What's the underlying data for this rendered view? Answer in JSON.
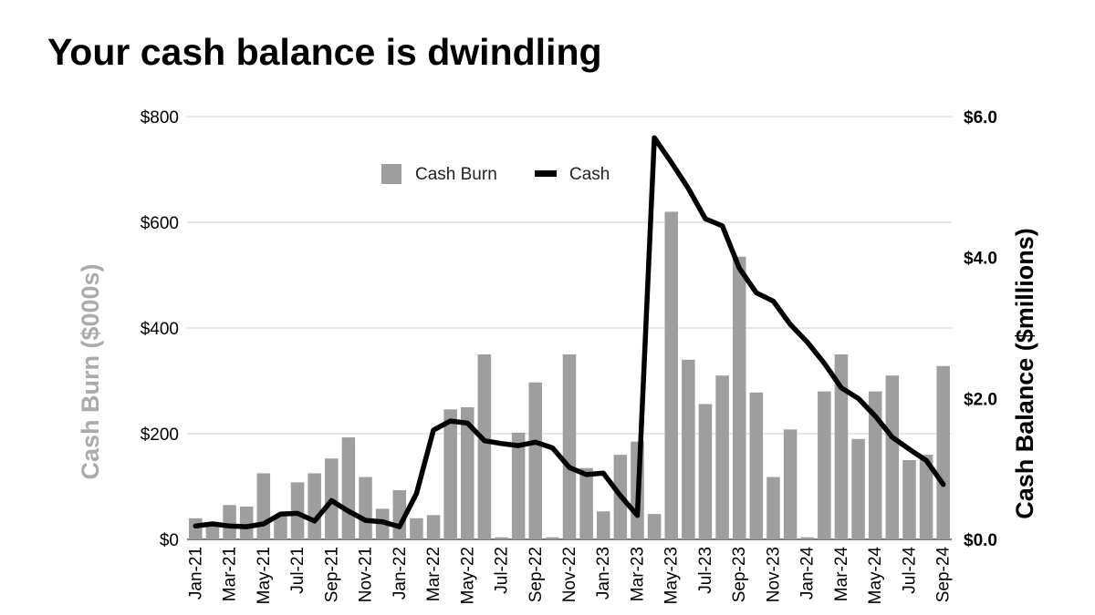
{
  "title": "Your cash balance is dwindling",
  "colors": {
    "bars": "#9e9e9e",
    "line": "#000000",
    "grid": "#d0d0d0",
    "left_axis_title": "#ababab"
  },
  "chart_data": {
    "type": "bar",
    "title": "Your cash balance is dwindling",
    "categories": [
      "Jan-21",
      "Feb-21",
      "Mar-21",
      "Apr-21",
      "May-21",
      "Jun-21",
      "Jul-21",
      "Aug-21",
      "Sep-21",
      "Oct-21",
      "Nov-21",
      "Dec-21",
      "Jan-22",
      "Feb-22",
      "Mar-22",
      "Apr-22",
      "May-22",
      "Jun-22",
      "Jul-22",
      "Aug-22",
      "Sep-22",
      "Oct-22",
      "Nov-22",
      "Dec-22",
      "Jan-23",
      "Feb-23",
      "Mar-23",
      "Apr-23",
      "May-23",
      "Jun-23",
      "Jul-23",
      "Aug-23",
      "Sep-23",
      "Oct-23",
      "Nov-23",
      "Dec-23",
      "Jan-24",
      "Feb-24",
      "Mar-24",
      "Apr-24",
      "May-24",
      "Jun-24",
      "Jul-24",
      "Aug-24",
      "Sep-24"
    ],
    "x_tick_labels": [
      "Jan-21",
      "Mar-21",
      "May-21",
      "Jul-21",
      "Sep-21",
      "Nov-21",
      "Jan-22",
      "Mar-22",
      "May-22",
      "Jul-22",
      "Sep-22",
      "Nov-22",
      "Jan-23",
      "Mar-23",
      "May-23",
      "Jul-23",
      "Sep-23",
      "Nov-23",
      "Jan-24",
      "Mar-24",
      "May-24",
      "Jul-24",
      "Sep-24"
    ],
    "series": [
      {
        "name": "Cash Burn",
        "type": "bar",
        "axis": "left",
        "values": [
          40,
          30,
          65,
          62,
          125,
          45,
          108,
          125,
          153,
          193,
          118,
          58,
          93,
          40,
          46,
          246,
          250,
          350,
          4,
          202,
          297,
          4,
          350,
          135,
          53,
          160,
          185,
          48,
          620,
          340,
          256,
          310,
          535,
          278,
          118,
          208,
          4,
          280,
          350,
          190,
          280,
          310,
          150,
          160,
          328
        ]
      },
      {
        "name": "Cash",
        "type": "line",
        "axis": "right",
        "values": [
          0.19,
          0.22,
          0.19,
          0.18,
          0.22,
          0.36,
          0.37,
          0.26,
          0.55,
          0.4,
          0.27,
          0.25,
          0.18,
          0.65,
          1.55,
          1.68,
          1.65,
          1.4,
          1.36,
          1.33,
          1.38,
          1.3,
          1.02,
          0.92,
          0.94,
          0.62,
          0.34,
          5.7,
          5.35,
          4.98,
          4.55,
          4.45,
          3.85,
          3.5,
          3.38,
          3.05,
          2.8,
          2.5,
          2.15,
          2.0,
          1.75,
          1.45,
          1.28,
          1.12,
          0.78
        ]
      }
    ],
    "left_axis": {
      "label": "Cash Burn ($000s)",
      "range": [
        0,
        800
      ],
      "ticks": [
        "$0",
        "$200",
        "$400",
        "$600",
        "$800"
      ],
      "tick_values": [
        0,
        200,
        400,
        600,
        800
      ]
    },
    "right_axis": {
      "label": "Cash Balance ($millions)",
      "range": [
        0,
        6
      ],
      "ticks": [
        "$0.0",
        "$2.0",
        "$4.0",
        "$6.0"
      ],
      "tick_values": [
        0,
        2,
        4,
        6
      ]
    },
    "grid": true,
    "legend_position": "top-center"
  }
}
